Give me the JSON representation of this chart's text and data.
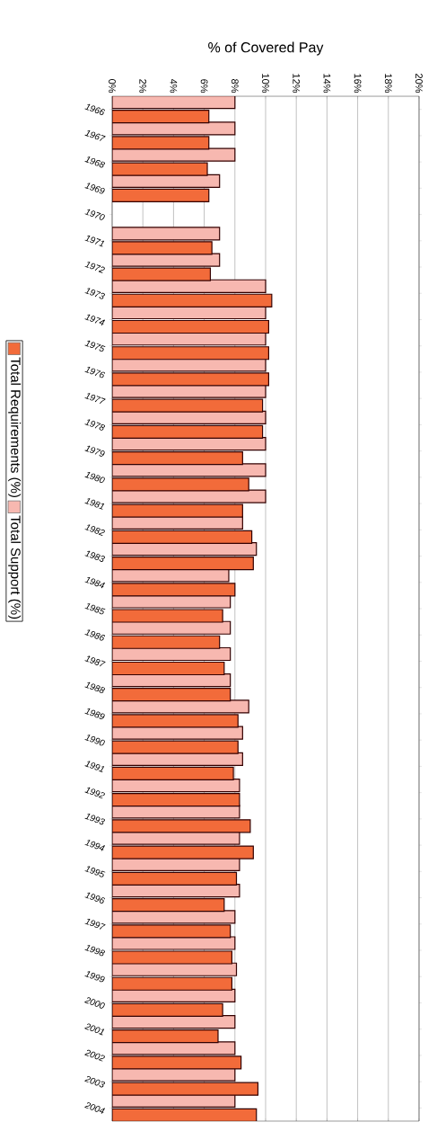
{
  "chart_data": {
    "type": "bar",
    "orientation": "horizontal",
    "xlabel": "% of Covered Pay",
    "categories": [
      "1966",
      "1967",
      "1968",
      "1969",
      "1970",
      "1971",
      "1972",
      "1973",
      "1974",
      "1975",
      "1976",
      "1977",
      "1978",
      "1979",
      "1980",
      "1981",
      "1982",
      "1983",
      "1984",
      "1985",
      "1986",
      "1987",
      "1988",
      "1989",
      "1990",
      "1991",
      "1992",
      "1993",
      "1994",
      "1995",
      "1996",
      "1997",
      "1998",
      "1999",
      "2000",
      "2001",
      "2002",
      "2003",
      "2004"
    ],
    "series": [
      {
        "name": "Total Requirements (%)",
        "color": "#f26b3a",
        "values": [
          6.3,
          6.3,
          6.2,
          6.3,
          null,
          6.5,
          6.4,
          10.4,
          10.2,
          10.2,
          10.2,
          9.8,
          9.8,
          8.5,
          8.9,
          8.5,
          9.1,
          9.2,
          8.0,
          7.2,
          7.0,
          7.3,
          7.7,
          8.2,
          8.2,
          7.9,
          8.3,
          9.0,
          9.2,
          8.1,
          7.3,
          7.7,
          7.8,
          7.8,
          7.2,
          6.9,
          8.4,
          9.5,
          9.4
        ]
      },
      {
        "name": "Total Support (%)",
        "color": "#f7b8b0",
        "values": [
          8.0,
          8.0,
          8.0,
          7.0,
          null,
          7.0,
          7.0,
          10.0,
          10.0,
          10.0,
          10.0,
          10.0,
          10.0,
          10.0,
          10.0,
          10.0,
          8.5,
          9.4,
          7.6,
          7.7,
          7.7,
          7.7,
          7.7,
          8.9,
          8.5,
          8.5,
          8.3,
          8.3,
          8.3,
          8.3,
          8.3,
          8.0,
          8.0,
          8.1,
          8.0,
          8.0,
          8.0,
          8.0,
          8.0
        ]
      }
    ],
    "xlim": [
      0,
      20
    ],
    "xticks": [
      {
        "value": 0,
        "label": "0%"
      },
      {
        "value": 2,
        "label": "2%"
      },
      {
        "value": 4,
        "label": "4%"
      },
      {
        "value": 6,
        "label": "6%"
      },
      {
        "value": 8,
        "label": "8%"
      },
      {
        "value": 10,
        "label": "10%"
      },
      {
        "value": 12,
        "label": "12%"
      },
      {
        "value": 14,
        "label": "14%"
      },
      {
        "value": 16,
        "label": "16%"
      },
      {
        "value": 18,
        "label": "18%"
      },
      {
        "value": 20,
        "label": "20%"
      }
    ],
    "grid": "x",
    "legend": "left"
  }
}
